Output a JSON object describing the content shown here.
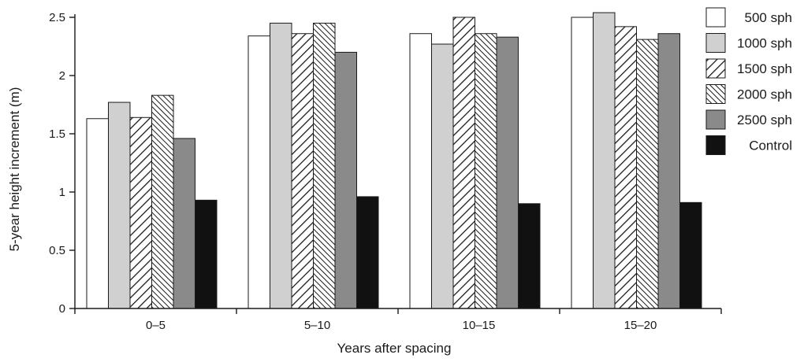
{
  "chart_data": {
    "type": "bar",
    "xlabel": "Years after spacing",
    "ylabel": "5-year height increment (m)",
    "categories": [
      "0–5",
      "5–10",
      "10–15",
      "15–20"
    ],
    "ylim": [
      0,
      2.5
    ],
    "yticks": [
      "0",
      "0.5",
      "1",
      "1.5",
      "2",
      "2.5"
    ],
    "legend_position": "right",
    "series": [
      {
        "name": "500 sph",
        "values": [
          1.63,
          2.34,
          2.36,
          2.5
        ],
        "fill": "white"
      },
      {
        "name": "1000 sph",
        "values": [
          1.77,
          2.45,
          2.27,
          2.54
        ],
        "fill": "light-gray"
      },
      {
        "name": "1500 sph",
        "values": [
          1.64,
          2.36,
          2.5,
          2.42
        ],
        "fill": "wide-hatch"
      },
      {
        "name": "2000 sph",
        "values": [
          1.83,
          2.45,
          2.36,
          2.31
        ],
        "fill": "dense-hatch"
      },
      {
        "name": "2500 sph",
        "values": [
          1.46,
          2.2,
          2.33,
          2.36
        ],
        "fill": "dark-gray"
      },
      {
        "name": "Control",
        "values": [
          0.93,
          0.96,
          0.9,
          0.91
        ],
        "fill": "black"
      }
    ]
  },
  "colors": {
    "white": "#ffffff",
    "light_gray": "#d0d0d0",
    "dark_gray": "#8a8a8a",
    "black": "#111111",
    "stroke": "#1a1a1a"
  }
}
